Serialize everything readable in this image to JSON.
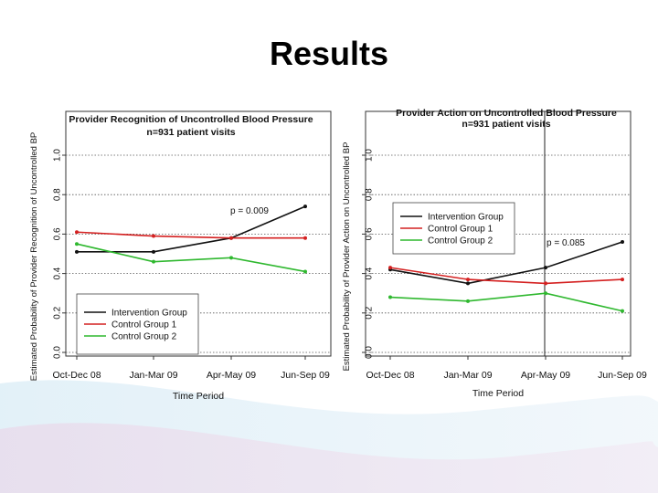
{
  "slide": {
    "title": "Results"
  },
  "colors": {
    "intervention": "#111111",
    "control1": "#d42020",
    "control2": "#2fb82f"
  },
  "chart_data": [
    {
      "type": "line",
      "title": "Provider Recognition of Uncontrolled Blood Pressure",
      "subtitle": "n=931 patient visits",
      "xlabel": "Time Period",
      "ylabel": "Estimated Probability of Provider Recognition of Uncontrolled BP",
      "categories": [
        "Oct-Dec 08",
        "Jan-Mar 09",
        "Apr-May 09",
        "Jun-Sep 09"
      ],
      "yticks": [
        "0.0",
        "0.2",
        "0.4",
        "0.6",
        "0.8",
        "1.0"
      ],
      "ylim": [
        0,
        1.0
      ],
      "grid": true,
      "annotation": "p = 0.009",
      "legend_position": "bottom-left",
      "series": [
        {
          "name": "Intervention Group",
          "values": [
            0.51,
            0.51,
            0.58,
            0.74
          ]
        },
        {
          "name": "Control Group 1",
          "values": [
            0.61,
            0.59,
            0.58,
            0.58
          ]
        },
        {
          "name": "Control Group 2",
          "values": [
            0.55,
            0.46,
            0.48,
            0.41
          ]
        }
      ]
    },
    {
      "type": "line",
      "title": "Provider Action on Uncontrolled Blood Pressure",
      "subtitle": "n=931 patient visits",
      "xlabel": "Time Period",
      "ylabel": "Estimated Probability of Provider Action on Uncontrolled BP",
      "categories": [
        "Oct-Dec 08",
        "Jan-Mar 09",
        "Apr-May 09",
        "Jun-Sep 09"
      ],
      "yticks": [
        "0.0",
        "0.2",
        "0.4",
        "0.6",
        "0.8",
        "1.0"
      ],
      "ylim": [
        0,
        1.0
      ],
      "grid": true,
      "annotation": "p = 0.085",
      "legend_position": "top-left",
      "series": [
        {
          "name": "Intervention Group",
          "values": [
            0.42,
            0.35,
            0.43,
            0.56
          ]
        },
        {
          "name": "Control Group 1",
          "values": [
            0.43,
            0.37,
            0.35,
            0.37
          ]
        },
        {
          "name": "Control Group 2",
          "values": [
            0.28,
            0.26,
            0.3,
            0.21
          ]
        }
      ]
    }
  ]
}
